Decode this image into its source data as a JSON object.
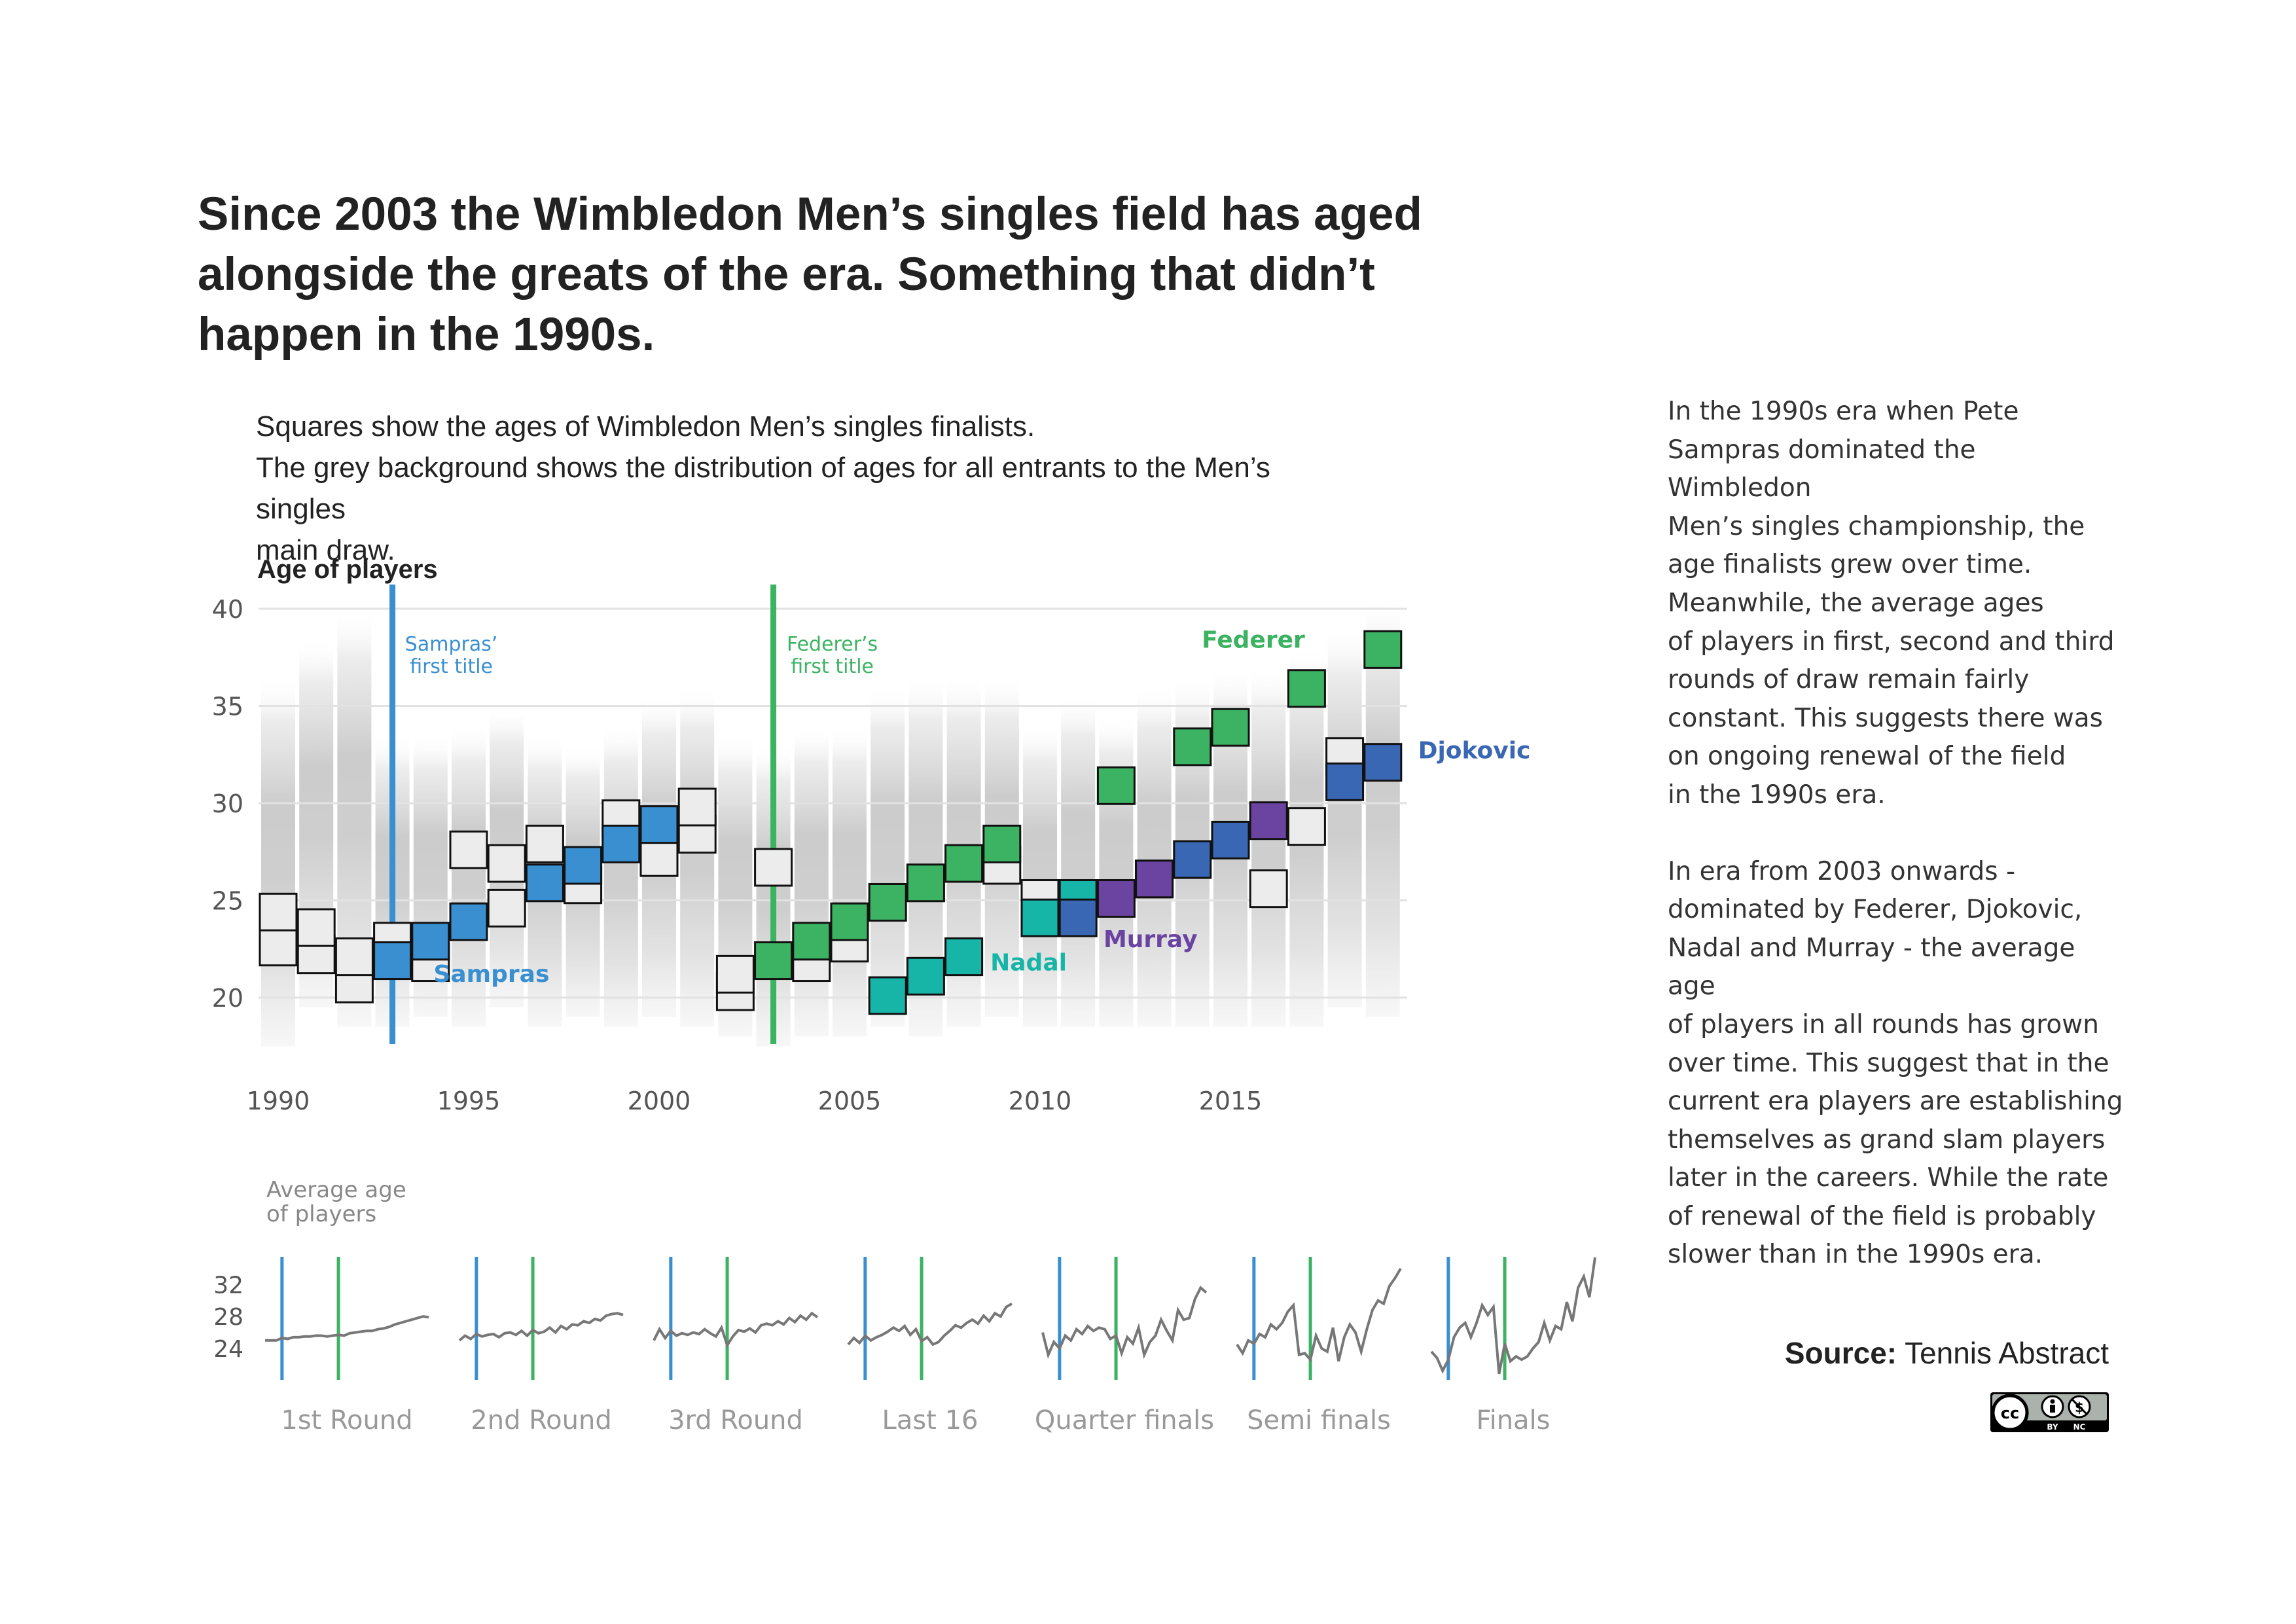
{
  "title": "Since 2003 the Wimbledon Men’s singles field has aged alongside the greats of the era. Something that didn’t happen in the 1990s.",
  "subtitle_lines": [
    "Squares show the ages of Wimbledon Men’s singles finalists.",
    "The grey background shows the distribution of ages for all entrants to the  Men’s singles",
    "main draw."
  ],
  "side_paragraphs": [
    "In the 1990s era when Pete\nSampras dominated the Wimbledon\nMen’s singles championship, the\nage finalists grew over time.\nMeanwhile, the average ages\nof players in first, second and third\nrounds of draw remain fairly\nconstant. This suggests there was\non ongoing renewal of the field\nin the 1990s era.",
    "In era from 2003 onwards -\ndominated by Federer, Djokovic,\nNadal and Murray - the average age\nof players in all rounds has grown\nover time. This suggest that in the\ncurrent era players are establishing\nthemselves as grand slam players\nlater in the careers. While the rate\nof renewal of the field is probably\nslower than in the 1990s era."
  ],
  "source": {
    "label": "Source:",
    "value": "Tennis Abstract"
  },
  "license_badge": {
    "icon": "cc-by-nc-icon",
    "text_by": "BY",
    "text_nc": "NC"
  },
  "colors": {
    "sampras": "#3a8fd0",
    "federer": "#3cb362",
    "nadal": "#17b5a8",
    "murray": "#6a44a0",
    "djokovic": "#3a67b3",
    "other": "#ececec",
    "axis_text": "#555555",
    "grid": "#e2e2e2",
    "avg_line": "#777777"
  },
  "chart_data": [
    {
      "type": "scatter",
      "ylabel": "Age of players",
      "ylim": [
        17,
        41
      ],
      "yticks": [
        20,
        25,
        30,
        35,
        40
      ],
      "xlim": [
        1989.5,
        2019.5
      ],
      "xticks": [
        1990,
        1995,
        2000,
        2005,
        2010,
        2015
      ],
      "grid": true,
      "annotations": [
        {
          "year": 1993,
          "text_lines": [
            "Sampras’",
            "first title"
          ],
          "color_key": "sampras"
        },
        {
          "year": 2003,
          "text_lines": [
            "Federer’s",
            "first title"
          ],
          "color_key": "federer"
        }
      ],
      "player_labels": [
        {
          "text": "Sampras",
          "year": 1995.6,
          "age": 20.8,
          "color_key": "sampras"
        },
        {
          "text": "Federer",
          "year": 2015.6,
          "age": 38.0,
          "color_key": "federer"
        },
        {
          "text": "Nadal",
          "year": 2009.7,
          "age": 21.4,
          "color_key": "nadal"
        },
        {
          "text": "Murray",
          "year": 2012.9,
          "age": 22.6,
          "color_key": "murray"
        },
        {
          "text": "Djokovic",
          "year": 2021.4,
          "age": 32.3,
          "color_key": "djokovic"
        }
      ],
      "finalists": [
        {
          "year": 1990,
          "winner": [
            "other",
            24.4
          ],
          "runner_up": [
            "other",
            22.6
          ]
        },
        {
          "year": 1991,
          "winner": [
            "other",
            23.6
          ],
          "runner_up": [
            "other",
            22.2
          ]
        },
        {
          "year": 1992,
          "winner": [
            "other",
            22.1
          ],
          "runner_up": [
            "other",
            20.7
          ]
        },
        {
          "year": 1993,
          "winner": [
            "sampras",
            21.9
          ],
          "runner_up": [
            "other",
            22.9
          ]
        },
        {
          "year": 1994,
          "winner": [
            "sampras",
            22.9
          ],
          "runner_up": [
            "other",
            21.8
          ]
        },
        {
          "year": 1995,
          "winner": [
            "sampras",
            23.9
          ],
          "runner_up": [
            "other",
            27.6
          ]
        },
        {
          "year": 1996,
          "winner": [
            "other",
            24.6
          ],
          "runner_up": [
            "other",
            26.9
          ]
        },
        {
          "year": 1997,
          "winner": [
            "sampras",
            25.9
          ],
          "runner_up": [
            "other",
            27.9
          ]
        },
        {
          "year": 1998,
          "winner": [
            "sampras",
            26.8
          ],
          "runner_up": [
            "other",
            25.8
          ]
        },
        {
          "year": 1999,
          "winner": [
            "sampras",
            27.9
          ],
          "runner_up": [
            "other",
            29.2
          ]
        },
        {
          "year": 2000,
          "winner": [
            "sampras",
            28.9
          ],
          "runner_up": [
            "other",
            27.2
          ]
        },
        {
          "year": 2001,
          "winner": [
            "other",
            29.8
          ],
          "runner_up": [
            "other",
            28.4
          ]
        },
        {
          "year": 2002,
          "winner": [
            "other",
            21.2
          ],
          "runner_up": [
            "other",
            20.3
          ]
        },
        {
          "year": 2003,
          "winner": [
            "federer",
            21.9
          ],
          "runner_up": [
            "other",
            26.7
          ]
        },
        {
          "year": 2004,
          "winner": [
            "federer",
            22.9
          ],
          "runner_up": [
            "other",
            21.8
          ]
        },
        {
          "year": 2005,
          "winner": [
            "federer",
            23.9
          ],
          "runner_up": [
            "other",
            22.8
          ]
        },
        {
          "year": 2006,
          "winner": [
            "federer",
            24.9
          ],
          "runner_up": [
            "nadal",
            20.1
          ]
        },
        {
          "year": 2007,
          "winner": [
            "federer",
            25.9
          ],
          "runner_up": [
            "nadal",
            21.1
          ]
        },
        {
          "year": 2008,
          "winner": [
            "nadal",
            22.1
          ],
          "runner_up": [
            "federer",
            26.9
          ]
        },
        {
          "year": 2009,
          "winner": [
            "federer",
            27.9
          ],
          "runner_up": [
            "other",
            26.8
          ]
        },
        {
          "year": 2010,
          "winner": [
            "nadal",
            24.1
          ],
          "runner_up": [
            "other",
            25.1
          ]
        },
        {
          "year": 2011,
          "winner": [
            "djokovic",
            24.1
          ],
          "runner_up": [
            "nadal",
            25.1
          ]
        },
        {
          "year": 2012,
          "winner": [
            "federer",
            30.9
          ],
          "runner_up": [
            "murray",
            25.1
          ]
        },
        {
          "year": 2013,
          "winner": [
            "murray",
            26.1
          ],
          "runner_up": [
            "djokovic",
            26.1
          ]
        },
        {
          "year": 2014,
          "winner": [
            "djokovic",
            27.1
          ],
          "runner_up": [
            "federer",
            32.9
          ]
        },
        {
          "year": 2015,
          "winner": [
            "djokovic",
            28.1
          ],
          "runner_up": [
            "federer",
            33.9
          ]
        },
        {
          "year": 2016,
          "winner": [
            "murray",
            29.1
          ],
          "runner_up": [
            "other",
            25.6
          ]
        },
        {
          "year": 2017,
          "winner": [
            "federer",
            35.9
          ],
          "runner_up": [
            "other",
            28.8
          ]
        },
        {
          "year": 2018,
          "winner": [
            "djokovic",
            31.1
          ],
          "runner_up": [
            "other",
            32.4
          ]
        },
        {
          "year": 2019,
          "winner": [
            "djokovic",
            32.1
          ],
          "runner_up": [
            "federer",
            37.9
          ]
        }
      ],
      "entrant_age_range": [
        [
          17.5,
          36.5
        ],
        [
          19.5,
          38.5
        ],
        [
          18.5,
          40.0
        ],
        [
          18.5,
          33.5
        ],
        [
          19.0,
          33.5
        ],
        [
          18.5,
          34.0
        ],
        [
          19.5,
          35.0
        ],
        [
          18.5,
          33.5
        ],
        [
          19.0,
          33.0
        ],
        [
          18.5,
          34.0
        ],
        [
          19.0,
          35.5
        ],
        [
          18.5,
          36.0
        ],
        [
          18.0,
          33.5
        ],
        [
          17.5,
          33.0
        ],
        [
          18.0,
          34.0
        ],
        [
          18.0,
          34.0
        ],
        [
          18.5,
          36.0
        ],
        [
          18.0,
          36.5
        ],
        [
          18.5,
          36.5
        ],
        [
          19.0,
          36.5
        ],
        [
          18.5,
          34.0
        ],
        [
          18.5,
          35.5
        ],
        [
          18.5,
          34.5
        ],
        [
          18.5,
          36.0
        ],
        [
          18.5,
          36.5
        ],
        [
          18.5,
          37.0
        ],
        [
          18.5,
          37.0
        ],
        [
          18.5,
          38.0
        ],
        [
          19.5,
          39.0
        ],
        [
          19.0,
          40.5
        ]
      ]
    },
    {
      "type": "line",
      "title": "Average age of players",
      "ylim": [
        22,
        34
      ],
      "yticks": [
        24,
        28,
        32
      ],
      "x_start_year": 1990,
      "x_end_year": 2019,
      "marker_years": [
        1993,
        2003
      ],
      "panels": [
        {
          "label": "1st Round",
          "values": [
            25.0,
            25.0,
            25.0,
            25.3,
            25.2,
            25.4,
            25.4,
            25.5,
            25.5,
            25.6,
            25.6,
            25.5,
            25.6,
            25.7,
            25.6,
            25.9,
            26.0,
            26.1,
            26.2,
            26.2,
            26.4,
            26.5,
            26.7,
            27.0,
            27.2,
            27.4,
            27.6,
            27.8,
            28.0,
            27.9
          ]
        },
        {
          "label": "2nd Round",
          "values": [
            25.0,
            25.6,
            25.2,
            25.8,
            25.5,
            25.7,
            25.8,
            25.4,
            25.9,
            26.0,
            25.7,
            26.2,
            25.6,
            26.3,
            25.9,
            26.1,
            26.6,
            26.0,
            26.8,
            26.4,
            27.0,
            26.9,
            27.4,
            27.2,
            27.7,
            27.5,
            28.1,
            28.3,
            28.4,
            28.2
          ]
        },
        {
          "label": "3rd Round",
          "values": [
            25.0,
            26.4,
            25.3,
            26.2,
            25.6,
            25.9,
            25.7,
            26.0,
            25.8,
            26.4,
            25.9,
            25.5,
            26.6,
            24.4,
            25.5,
            26.3,
            26.1,
            26.5,
            26.0,
            26.9,
            27.1,
            26.9,
            27.4,
            27.0,
            27.8,
            27.3,
            28.1,
            27.6,
            28.4,
            27.9
          ]
        },
        {
          "label": "Last 16",
          "values": [
            24.5,
            25.3,
            24.7,
            25.6,
            25.0,
            25.4,
            25.7,
            26.1,
            26.6,
            26.2,
            26.8,
            25.7,
            26.4,
            24.9,
            25.4,
            24.5,
            24.8,
            25.6,
            26.2,
            26.9,
            26.6,
            27.2,
            27.6,
            27.1,
            28.1,
            27.4,
            28.4,
            28.0,
            29.2,
            29.6
          ]
        },
        {
          "label": "Quarter finals",
          "values": [
            26.0,
            23.2,
            24.8,
            24.0,
            25.6,
            25.0,
            26.4,
            25.8,
            26.8,
            26.2,
            26.6,
            26.4,
            25.2,
            25.6,
            23.4,
            25.4,
            24.6,
            26.6,
            23.2,
            24.8,
            25.6,
            27.6,
            26.2,
            25.0,
            28.8,
            27.6,
            27.8,
            30.2,
            31.6,
            31.0
          ]
        },
        {
          "label": "Semi finals",
          "values": [
            24.5,
            23.4,
            25.0,
            24.6,
            25.8,
            25.4,
            27.0,
            26.4,
            27.2,
            28.6,
            29.4,
            23.2,
            23.4,
            22.6,
            25.6,
            24.0,
            23.6,
            26.6,
            22.4,
            25.4,
            27.0,
            26.0,
            23.6,
            26.4,
            28.8,
            30.0,
            29.6,
            31.8,
            32.8,
            34.0
          ]
        },
        {
          "label": "Finals",
          "values": [
            23.6,
            22.8,
            21.2,
            22.6,
            25.4,
            26.6,
            27.2,
            25.4,
            27.2,
            29.4,
            28.2,
            29.2,
            20.8,
            24.6,
            22.4,
            23.0,
            22.6,
            23.0,
            24.0,
            24.8,
            27.2,
            25.0,
            26.8,
            26.4,
            29.8,
            27.4,
            31.6,
            33.0,
            30.4,
            35.4
          ]
        }
      ]
    }
  ]
}
